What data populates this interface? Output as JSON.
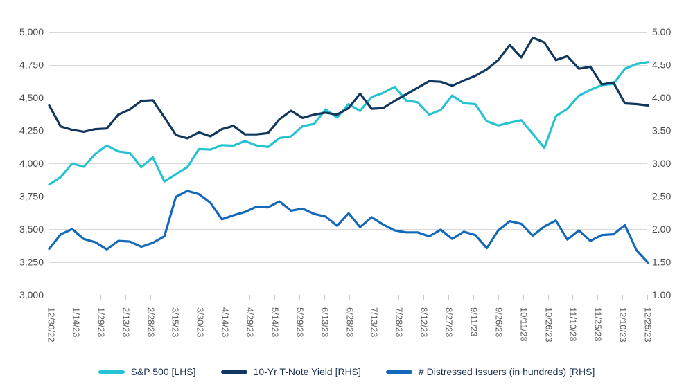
{
  "chart_data": {
    "type": "line",
    "title": "",
    "grid": true,
    "legend_position": "bottom",
    "x_tick_labels": [
      "12/30/22",
      "1/14/23",
      "1/29/23",
      "2/13/23",
      "2/28/23",
      "3/15/23",
      "3/30/23",
      "4/14/23",
      "4/29/23",
      "5/14/23",
      "5/29/23",
      "6/13/23",
      "6/28/23",
      "7/13/23",
      "7/28/23",
      "8/12/23",
      "8/27/23",
      "9/11/23",
      "9/26/23",
      "10/11/23",
      "10/26/23",
      "11/10/23",
      "11/25/23",
      "12/10/23",
      "12/25/23"
    ],
    "x": [
      "12/30/22",
      "1/6/23",
      "1/13/23",
      "1/20/23",
      "1/27/23",
      "2/3/23",
      "2/10/23",
      "2/17/23",
      "2/24/23",
      "3/3/23",
      "3/10/23",
      "3/17/23",
      "3/24/23",
      "3/31/23",
      "4/7/23",
      "4/14/23",
      "4/21/23",
      "4/28/23",
      "5/5/23",
      "5/12/23",
      "5/19/23",
      "5/26/23",
      "6/2/23",
      "6/9/23",
      "6/16/23",
      "6/23/23",
      "6/30/23",
      "7/7/23",
      "7/14/23",
      "7/21/23",
      "7/28/23",
      "8/4/23",
      "8/11/23",
      "8/18/23",
      "8/25/23",
      "9/1/23",
      "9/8/23",
      "9/15/23",
      "9/22/23",
      "9/29/23",
      "10/6/23",
      "10/13/23",
      "10/20/23",
      "10/27/23",
      "11/3/23",
      "11/10/23",
      "11/17/23",
      "11/24/23",
      "12/1/23",
      "12/8/23",
      "12/15/23",
      "12/22/23",
      "12/29/23"
    ],
    "left_axis": {
      "min": 3000,
      "max": 5000,
      "step": 250,
      "tick_labels": [
        "5,000",
        "4,750",
        "4,500",
        "4,250",
        "4,000",
        "3,750",
        "3,500",
        "3,250",
        "3,000"
      ]
    },
    "right_axis": {
      "min": 1.0,
      "max": 5.0,
      "step": 0.5,
      "tick_labels": [
        "5.00",
        "4.50",
        "4.00",
        "3.50",
        "3.00",
        "2.50",
        "2.00",
        "1.50",
        "1.00"
      ]
    },
    "series": [
      {
        "key": "sp500",
        "name": "S&P 500 [LHS]",
        "axis": "left",
        "color": "#25C3D1",
        "values": [
          3839,
          3895,
          3999,
          3973,
          4071,
          4136,
          4090,
          4079,
          3970,
          4046,
          3862,
          3917,
          3971,
          4109,
          4105,
          4138,
          4134,
          4169,
          4136,
          4124,
          4192,
          4205,
          4282,
          4299,
          4410,
          4348,
          4450,
          4399,
          4505,
          4536,
          4582,
          4478,
          4464,
          4370,
          4406,
          4516,
          4457,
          4450,
          4320,
          4288,
          4309,
          4328,
          4224,
          4117,
          4358,
          4415,
          4514,
          4559,
          4595,
          4604,
          4719,
          4755,
          4770
        ]
      },
      {
        "key": "tnote_yield",
        "name": "10-Yr T-Note Yield [RHS]",
        "axis": "right",
        "color": "#11375F",
        "values": [
          3.88,
          3.56,
          3.51,
          3.48,
          3.52,
          3.53,
          3.74,
          3.82,
          3.95,
          3.96,
          3.7,
          3.43,
          3.38,
          3.47,
          3.41,
          3.52,
          3.57,
          3.44,
          3.44,
          3.46,
          3.67,
          3.8,
          3.69,
          3.74,
          3.77,
          3.74,
          3.84,
          4.06,
          3.83,
          3.84,
          3.95,
          4.05,
          4.15,
          4.25,
          4.24,
          4.18,
          4.26,
          4.33,
          4.43,
          4.57,
          4.8,
          4.61,
          4.91,
          4.84,
          4.57,
          4.63,
          4.44,
          4.47,
          4.2,
          4.23,
          3.91,
          3.9,
          3.88
        ]
      },
      {
        "key": "distressed_issuers",
        "name": "# Distressed Issuers (in hundreds) [RHS]",
        "axis": "right",
        "color": "#1368B9",
        "values": [
          1.7,
          1.92,
          2.0,
          1.85,
          1.8,
          1.69,
          1.82,
          1.81,
          1.73,
          1.79,
          1.89,
          2.49,
          2.58,
          2.53,
          2.4,
          2.15,
          2.21,
          2.26,
          2.34,
          2.33,
          2.42,
          2.28,
          2.31,
          2.23,
          2.19,
          2.05,
          2.24,
          2.03,
          2.18,
          2.07,
          1.98,
          1.95,
          1.95,
          1.89,
          1.99,
          1.85,
          1.96,
          1.91,
          1.71,
          1.98,
          2.12,
          2.08,
          1.9,
          2.04,
          2.13,
          1.84,
          1.98,
          1.82,
          1.91,
          1.92,
          2.06,
          1.68,
          1.49
        ]
      }
    ]
  },
  "colors": {
    "background": "#FFFFFF",
    "gridline": "#D9D9D9",
    "tick": "#C9C9C9",
    "y_axis_text": "#4B4B4B",
    "x_axis_text": "#595959",
    "legend_text": "#1B3050",
    "sp500_line": "#25C3D1",
    "tnote_line": "#11375F",
    "distressed_line": "#1368B9"
  }
}
